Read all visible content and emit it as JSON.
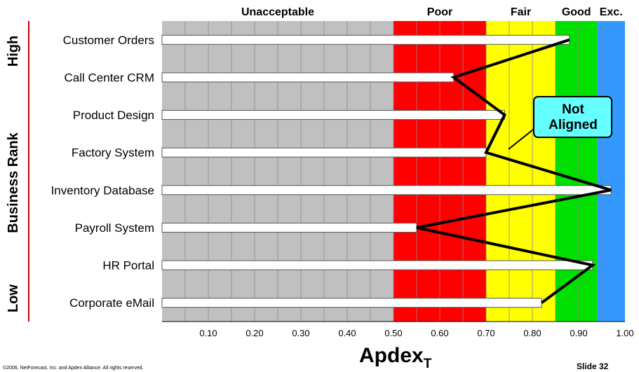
{
  "chart_data": {
    "type": "bar",
    "orientation": "horizontal",
    "categories": [
      "Customer Orders",
      "Call Center CRM",
      "Product Design",
      "Factory System",
      "Inventory Database",
      "Payroll System",
      "HR Portal",
      "Corporate eMail"
    ],
    "values": [
      0.88,
      0.63,
      0.74,
      0.7,
      0.97,
      0.55,
      0.93,
      0.82
    ],
    "xlim": [
      0,
      1.0
    ],
    "x_ticks": [
      "0.10",
      "0.20",
      "0.30",
      "0.40",
      "0.50",
      "0.60",
      "0.70",
      "0.80",
      "0.90",
      "1.00"
    ],
    "xlabel": "Apdex",
    "xlabel_subscript": "T",
    "ylabel": "Business Rank",
    "ylabel_high": "High",
    "ylabel_low": "Low",
    "zones": [
      {
        "label": "Unacceptable",
        "from": 0.0,
        "to": 0.5,
        "color": "#c0c0c0"
      },
      {
        "label": "Poor",
        "from": 0.5,
        "to": 0.7,
        "color": "#ff0000"
      },
      {
        "label": "Fair",
        "from": 0.7,
        "to": 0.85,
        "color": "#ffff00"
      },
      {
        "label": "Good",
        "from": 0.85,
        "to": 0.94,
        "color": "#00e000"
      },
      {
        "label": "Exc.",
        "from": 0.94,
        "to": 1.0,
        "color": "#3399ff"
      }
    ],
    "callout": {
      "lines": [
        "Not",
        "Aligned"
      ]
    },
    "grid": true
  },
  "footer": {
    "copyright": "©2006, NetForecast, Inc. and Apdex Alliance. All rights reserved.",
    "slide": "Slide 32"
  },
  "colors": {
    "bar_fill": "#ffffff",
    "line": "#000000",
    "callout_fill": "#66ffff",
    "rank_bar": "#cc0000"
  }
}
